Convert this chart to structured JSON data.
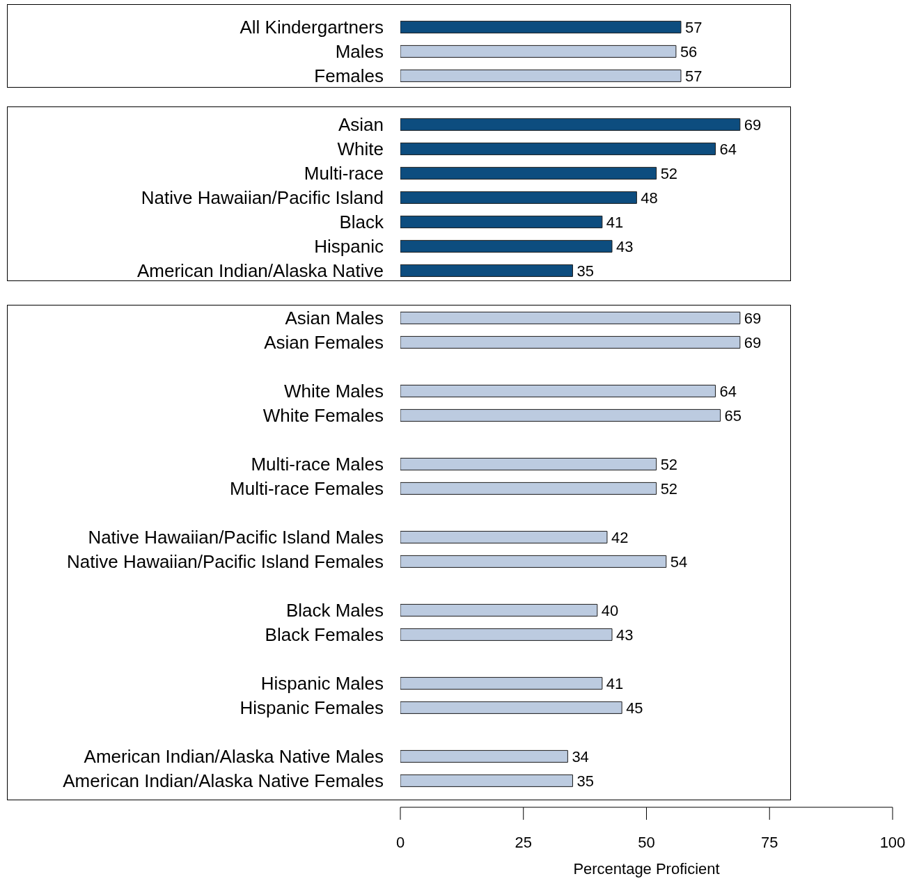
{
  "chart_data": [
    {
      "type": "bar",
      "orientation": "horizontal",
      "categories": [
        "All Kindergartners",
        "Males",
        "Females"
      ],
      "values": [
        57,
        56,
        57
      ],
      "colors": [
        "#0d4d7f",
        "#bccbe0",
        "#bccbe0"
      ],
      "data_labels": true,
      "xlim": [
        0,
        100
      ],
      "xticks": [
        0,
        25,
        50,
        75,
        100
      ],
      "tick_labels": "y"
    },
    {
      "type": "bar",
      "orientation": "horizontal",
      "categories": [
        "Asian",
        "White",
        "Multi-race",
        "Native Hawaiian/Pacific Island",
        "Black",
        "Hispanic",
        "American Indian/Alaska Native"
      ],
      "values": [
        69,
        64,
        52,
        48,
        41,
        43,
        35
      ],
      "colors": [
        "#0d4d7f",
        "#0d4d7f",
        "#0d4d7f",
        "#0d4d7f",
        "#0d4d7f",
        "#0d4d7f",
        "#0d4d7f"
      ],
      "data_labels": true,
      "xlim": [
        0,
        100
      ],
      "xticks": [
        0,
        25,
        50,
        75,
        100
      ],
      "tick_labels": "y"
    },
    {
      "type": "bar",
      "orientation": "horizontal",
      "categories": [
        "Asian Males",
        "Asian Females",
        "White Males",
        "White Females",
        "Multi-race Males",
        "Multi-race Females",
        "Native Hawaiian/Pacific Island Males",
        "Native Hawaiian/Pacific Island Females",
        "Black Males",
        "Black Females",
        "Hispanic Males",
        "Hispanic Females",
        "American Indian/Alaska Native Males",
        "American Indian/Alaska Native Females"
      ],
      "values": [
        69,
        69,
        64,
        65,
        52,
        52,
        42,
        54,
        40,
        43,
        41,
        45,
        34,
        35
      ],
      "colors": [
        "#bccbe0",
        "#bccbe0",
        "#bccbe0",
        "#bccbe0",
        "#bccbe0",
        "#bccbe0",
        "#bccbe0",
        "#bccbe0",
        "#bccbe0",
        "#bccbe0",
        "#bccbe0",
        "#bccbe0",
        "#bccbe0",
        "#bccbe0"
      ],
      "data_labels": true,
      "xlim": [
        0,
        100
      ],
      "xticks": [
        0,
        25,
        50,
        75,
        100
      ],
      "xlabel": "Percentage Proficient"
    }
  ]
}
